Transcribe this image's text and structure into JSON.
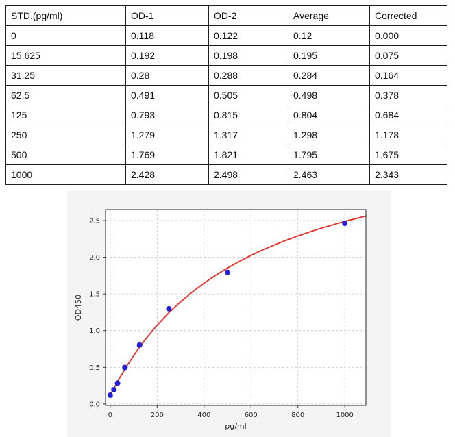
{
  "table": {
    "columns": [
      "STD.(pg/ml)",
      "OD-1",
      "OD-2",
      "Average",
      "Corrected"
    ],
    "rows": [
      [
        "0",
        "0.118",
        "0.122",
        "0.12",
        "0.000"
      ],
      [
        "15.625",
        "0.192",
        "0.198",
        "0.195",
        "0.075"
      ],
      [
        "31.25",
        "0.28",
        "0.288",
        "0.284",
        "0.164"
      ],
      [
        "62.5",
        "0.491",
        "0.505",
        "0.498",
        "0.378"
      ],
      [
        "125",
        "0.793",
        "0.815",
        "0.804",
        "0.684"
      ],
      [
        "250",
        "1.279",
        "1.317",
        "1.298",
        "1.178"
      ],
      [
        "500",
        "1.769",
        "1.821",
        "1.795",
        "1.675"
      ],
      [
        "1000",
        "2.428",
        "2.498",
        "2.463",
        "2.343"
      ]
    ]
  },
  "chart_data": {
    "type": "scatter",
    "title": "",
    "xlabel": "pg/ml",
    "ylabel": "OD450",
    "xlim": [
      -20,
      1090
    ],
    "ylim": [
      -0.02,
      2.65
    ],
    "x_ticks": [
      0,
      200,
      400,
      600,
      800,
      1000
    ],
    "y_ticks": [
      "0.0",
      "0.5",
      "1.0",
      "1.5",
      "2.0",
      "2.5"
    ],
    "grid": "dashed",
    "legend": "none",
    "points": {
      "name": "standard-points",
      "x": [
        0,
        15.625,
        31.25,
        62.5,
        125,
        250,
        500,
        1000
      ],
      "y": [
        0.12,
        0.195,
        0.284,
        0.498,
        0.804,
        1.298,
        1.795,
        2.463
      ]
    },
    "fit_curve": {
      "name": "4pl-fit-curve",
      "x": [
        0,
        10,
        20,
        30,
        40,
        50,
        75,
        100,
        125,
        150,
        175,
        200,
        250,
        300,
        350,
        400,
        450,
        500,
        550,
        600,
        650,
        700,
        750,
        800,
        850,
        900,
        950,
        1000,
        1050,
        1090
      ],
      "y": [
        0.12,
        0.18,
        0.239,
        0.297,
        0.353,
        0.408,
        0.539,
        0.661,
        0.775,
        0.881,
        0.981,
        1.074,
        1.243,
        1.393,
        1.527,
        1.647,
        1.756,
        1.854,
        1.943,
        2.025,
        2.1,
        2.168,
        2.232,
        2.291,
        2.346,
        2.397,
        2.444,
        2.489,
        2.53,
        2.562
      ]
    },
    "colors": {
      "figure_bg": "#f4f4f4",
      "plot_bg": "#ffffff",
      "grid": "#c9c9c9",
      "spine": "#3a3a3a",
      "tick_text": "#262626",
      "point": "#2121d6",
      "curve": "#e5342b"
    }
  }
}
